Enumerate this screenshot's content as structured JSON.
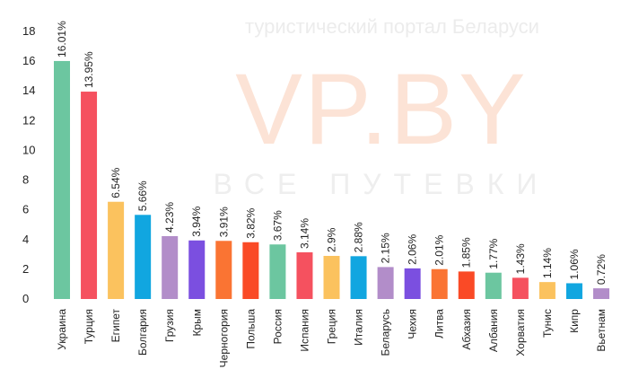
{
  "watermark": {
    "tagline": "туристический портал Беларуси",
    "logo": "VP.BY",
    "subtitle": "ВСЕ ПУТЕВКИ"
  },
  "chart_data": {
    "type": "bar",
    "categories": [
      "Украина",
      "Турция",
      "Египет",
      "Болгария",
      "Грузия",
      "Крым",
      "Черногория",
      "Польша",
      "Россия",
      "Испания",
      "Греция",
      "Италия",
      "Беларусь",
      "Чехия",
      "Литва",
      "Абхазия",
      "Албания",
      "Хорватия",
      "Тунис",
      "Кипр",
      "Вьетнам"
    ],
    "values": [
      16.01,
      13.95,
      6.54,
      5.66,
      4.23,
      3.94,
      3.91,
      3.82,
      3.67,
      3.14,
      2.9,
      2.88,
      2.15,
      2.06,
      2.01,
      1.85,
      1.77,
      1.43,
      1.14,
      1.06,
      0.72
    ],
    "labels": [
      "16.01%",
      "13.95%",
      "6.54%",
      "5.66%",
      "4.23%",
      "3.94%",
      "3.91%",
      "3.82%",
      "3.67%",
      "3.14%",
      "2.9%",
      "2.88%",
      "2.15%",
      "2.06%",
      "2.01%",
      "1.85%",
      "1.77%",
      "1.43%",
      "1.14%",
      "1.06%",
      "0.72%"
    ],
    "colors": [
      "#6cc6a0",
      "#f5515f",
      "#fbc25e",
      "#11a6e0",
      "#b28dc9",
      "#7b4fe0",
      "#fa7433",
      "#fa4a26",
      "#6cc6a0",
      "#f5515f",
      "#fbc25e",
      "#11a6e0",
      "#b28dc9",
      "#7b4fe0",
      "#fa7433",
      "#fa4a26",
      "#6cc6a0",
      "#f5515f",
      "#fbc25e",
      "#11a6e0",
      "#b28dc9"
    ],
    "yticks": [
      0,
      2,
      4,
      6,
      8,
      10,
      12,
      14,
      16,
      18
    ],
    "ylim": [
      0,
      18
    ],
    "grid": false,
    "title": "",
    "xlabel": "",
    "ylabel": ""
  }
}
